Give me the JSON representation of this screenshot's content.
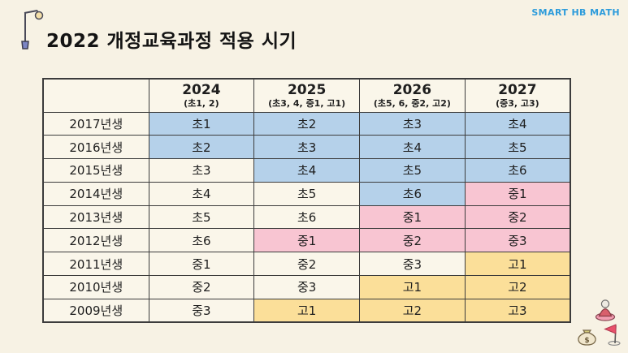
{
  "page": {
    "title": "2022 개정교육과정 적용 시기",
    "logo": "SMART HB MATH"
  },
  "colors": {
    "background": "#F7F2E4",
    "cell": "#FAF6EA",
    "blue": "#B5D1EA",
    "pink": "#F8C5D2",
    "yellow": "#FBDF99",
    "border": "#3C3C3C",
    "text": "#1E1E1E",
    "logo_blue": "#2D9CDB"
  },
  "table": {
    "corner_label": "",
    "columns": [
      {
        "year": "2024",
        "grades": "(초1, 2)"
      },
      {
        "year": "2025",
        "grades": "(초3, 4, 중1, 고1)"
      },
      {
        "year": "2026",
        "grades": "(초5, 6, 중2, 고2)"
      },
      {
        "year": "2027",
        "grades": "(중3, 고3)"
      }
    ],
    "rows": [
      {
        "label": "2017년생",
        "cells": [
          {
            "text": "초1",
            "highlight": "blue"
          },
          {
            "text": "초2",
            "highlight": "blue"
          },
          {
            "text": "초3",
            "highlight": "blue"
          },
          {
            "text": "초4",
            "highlight": "blue"
          }
        ]
      },
      {
        "label": "2016년생",
        "cells": [
          {
            "text": "초2",
            "highlight": "blue"
          },
          {
            "text": "초3",
            "highlight": "blue"
          },
          {
            "text": "초4",
            "highlight": "blue"
          },
          {
            "text": "초5",
            "highlight": "blue"
          }
        ]
      },
      {
        "label": "2015년생",
        "cells": [
          {
            "text": "초3",
            "highlight": "none"
          },
          {
            "text": "초4",
            "highlight": "blue"
          },
          {
            "text": "초5",
            "highlight": "blue"
          },
          {
            "text": "초6",
            "highlight": "blue"
          }
        ]
      },
      {
        "label": "2014년생",
        "cells": [
          {
            "text": "초4",
            "highlight": "none"
          },
          {
            "text": "초5",
            "highlight": "none"
          },
          {
            "text": "초6",
            "highlight": "blue"
          },
          {
            "text": "중1",
            "highlight": "pink"
          }
        ]
      },
      {
        "label": "2013년생",
        "cells": [
          {
            "text": "초5",
            "highlight": "none"
          },
          {
            "text": "초6",
            "highlight": "none"
          },
          {
            "text": "중1",
            "highlight": "pink"
          },
          {
            "text": "중2",
            "highlight": "pink"
          }
        ]
      },
      {
        "label": "2012년생",
        "cells": [
          {
            "text": "초6",
            "highlight": "none"
          },
          {
            "text": "중1",
            "highlight": "pink"
          },
          {
            "text": "중2",
            "highlight": "pink"
          },
          {
            "text": "중3",
            "highlight": "pink"
          }
        ]
      },
      {
        "label": "2011년생",
        "cells": [
          {
            "text": "중1",
            "highlight": "none"
          },
          {
            "text": "중2",
            "highlight": "none"
          },
          {
            "text": "중3",
            "highlight": "none"
          },
          {
            "text": "고1",
            "highlight": "yellow"
          }
        ]
      },
      {
        "label": "2010년생",
        "cells": [
          {
            "text": "중2",
            "highlight": "none"
          },
          {
            "text": "중3",
            "highlight": "none"
          },
          {
            "text": "고1",
            "highlight": "yellow"
          },
          {
            "text": "고2",
            "highlight": "yellow"
          }
        ]
      },
      {
        "label": "2009년생",
        "cells": [
          {
            "text": "중3",
            "highlight": "none"
          },
          {
            "text": "고1",
            "highlight": "yellow"
          },
          {
            "text": "고2",
            "highlight": "yellow"
          },
          {
            "text": "고3",
            "highlight": "yellow"
          }
        ]
      }
    ]
  },
  "icons": {
    "lamp": "street-lamp-icon",
    "corner": [
      "person-piece-icon",
      "money-bag-icon",
      "flag-icon"
    ]
  }
}
